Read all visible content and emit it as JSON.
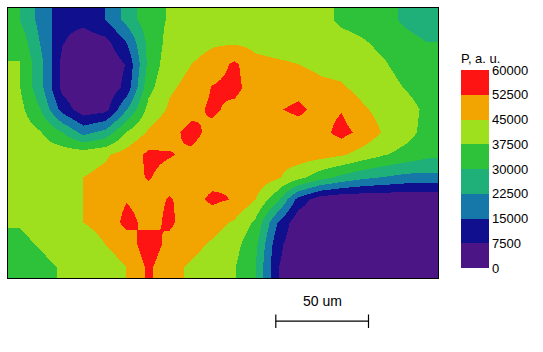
{
  "chart_data": {
    "type": "heatmap",
    "tick_labels": false,
    "z": [
      [
        30000,
        20000,
        10000,
        10000,
        15000,
        25000,
        35000,
        38000,
        40000,
        40000,
        40000,
        40000,
        40000,
        40000,
        40000,
        36000,
        35000,
        33000,
        28000,
        25000
      ],
      [
        35000,
        22000,
        8000,
        3000,
        5000,
        15000,
        32000,
        40000,
        42000,
        44000,
        44000,
        43000,
        42000,
        42000,
        41000,
        40000,
        38000,
        36000,
        33000,
        30000
      ],
      [
        38000,
        25000,
        5000,
        1000,
        1000,
        8000,
        32000,
        42000,
        45000,
        48000,
        54000,
        47000,
        46000,
        45000,
        43000,
        42000,
        40000,
        38000,
        35000,
        32000
      ],
      [
        38000,
        25000,
        5000,
        1000,
        1000,
        10000,
        35000,
        44000,
        47000,
        53000,
        55000,
        48000,
        48000,
        50000,
        47000,
        46000,
        42000,
        40000,
        37000,
        34000
      ],
      [
        40000,
        30000,
        12000,
        3000,
        5000,
        22000,
        40000,
        46000,
        50000,
        54000,
        50000,
        48000,
        52000,
        54000,
        50000,
        52000,
        46000,
        42000,
        40000,
        36000
      ],
      [
        42000,
        38000,
        30000,
        20000,
        25000,
        38000,
        46000,
        50000,
        55000,
        50000,
        48000,
        47000,
        48000,
        49000,
        50000,
        55000,
        50000,
        44000,
        40000,
        35000
      ],
      [
        42000,
        42000,
        42000,
        42000,
        44000,
        48000,
        54000,
        53000,
        51000,
        48000,
        47000,
        48000,
        48000,
        49000,
        48000,
        46000,
        42000,
        38000,
        35000,
        32000
      ],
      [
        42000,
        43000,
        44000,
        45000,
        47000,
        50000,
        53000,
        50000,
        50000,
        50000,
        52000,
        50000,
        46000,
        40000,
        33000,
        28000,
        24000,
        22000,
        20000,
        20000
      ],
      [
        40000,
        42000,
        44000,
        45000,
        48000,
        52000,
        50000,
        53000,
        50000,
        54000,
        52000,
        45000,
        32000,
        12000,
        3000,
        1000,
        1000,
        1000,
        1000,
        1000
      ],
      [
        38000,
        40000,
        42000,
        45000,
        47000,
        55000,
        50000,
        54000,
        48000,
        48000,
        44000,
        36000,
        15000,
        2000,
        1000,
        1000,
        1000,
        1000,
        1000,
        1000
      ],
      [
        36000,
        38000,
        40000,
        42000,
        45000,
        48000,
        57000,
        50000,
        47000,
        44000,
        40000,
        32000,
        10000,
        1000,
        1000,
        1000,
        1000,
        1000,
        1000,
        1000
      ],
      [
        35000,
        36000,
        38000,
        40000,
        42000,
        45000,
        54000,
        47000,
        44000,
        42000,
        38000,
        30000,
        8000,
        1000,
        1000,
        1000,
        1000,
        1000,
        1000,
        1000
      ]
    ],
    "colorbar": {
      "title": "P, a. u.",
      "range": [
        0,
        60000
      ],
      "ticks": [
        0,
        7500,
        15000,
        22500,
        30000,
        37500,
        45000,
        52500,
        60000
      ],
      "colors": [
        "#4b1585",
        "#10108f",
        "#1678a8",
        "#1fb07a",
        "#2ec23a",
        "#9ee01e",
        "#f2a500",
        "#ff1414"
      ]
    },
    "annotations": [
      "50 um"
    ]
  }
}
